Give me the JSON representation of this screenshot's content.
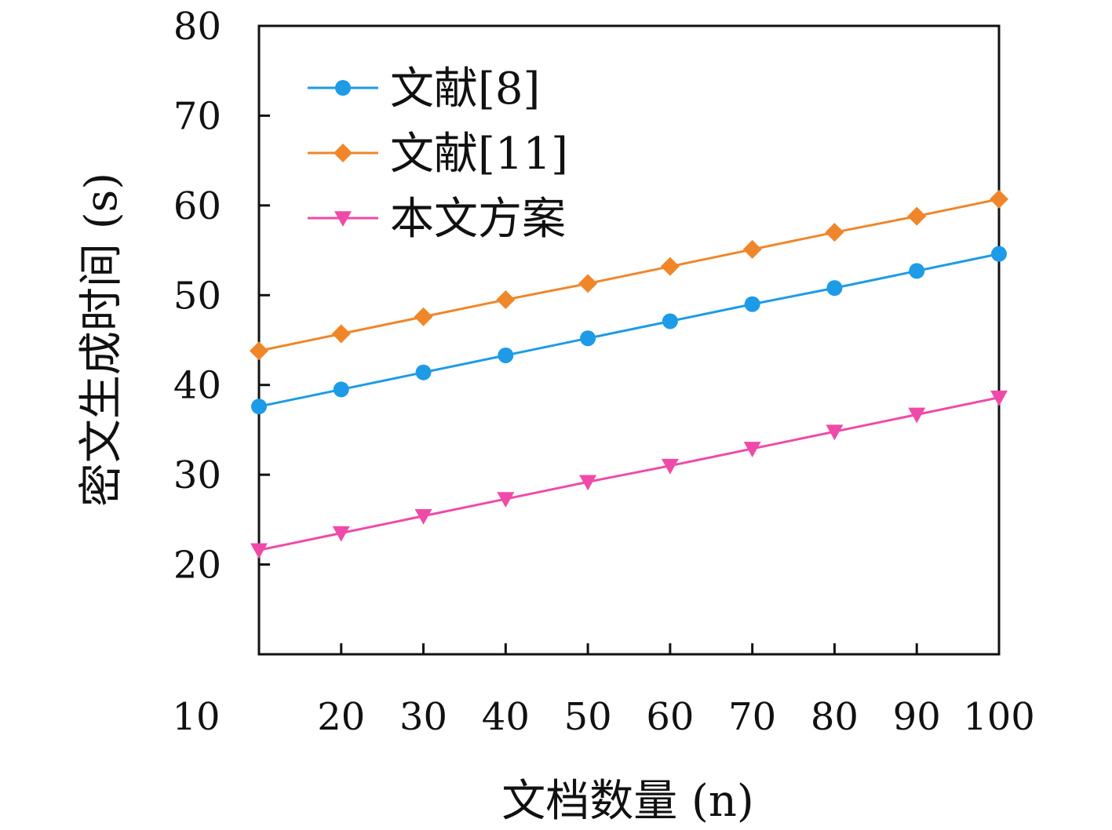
{
  "chart_data": {
    "type": "line",
    "title": "",
    "xlabel": "文档数量 (n)",
    "ylabel": "密文生成时间 (s)",
    "x": [
      10,
      20,
      30,
      40,
      50,
      60,
      70,
      80,
      90,
      100
    ],
    "xlim": [
      10,
      100
    ],
    "ylim": [
      10,
      80
    ],
    "x_ticks": [
      "10",
      "20",
      "30",
      "40",
      "50",
      "60",
      "70",
      "80",
      "90",
      "100"
    ],
    "y_ticks": [
      20,
      30,
      40,
      50,
      60,
      70,
      80
    ],
    "grid": false,
    "legend_position": "top-left",
    "series": [
      {
        "name": "文献[8]",
        "color": "#1e9be6",
        "marker": "circle",
        "values": [
          37.6,
          39.5,
          41.4,
          43.3,
          45.2,
          47.1,
          49.0,
          50.8,
          52.7,
          54.6
        ]
      },
      {
        "name": "文献[11]",
        "color": "#f0862a",
        "marker": "diamond",
        "values": [
          43.8,
          45.7,
          47.6,
          49.5,
          51.3,
          53.2,
          55.1,
          57.0,
          58.8,
          60.7
        ]
      },
      {
        "name": "本文方案",
        "color": "#f04aa8",
        "marker": "triangle-down",
        "values": [
          21.6,
          23.5,
          25.4,
          27.3,
          29.2,
          31.0,
          32.9,
          34.8,
          36.7,
          38.6
        ]
      }
    ]
  }
}
